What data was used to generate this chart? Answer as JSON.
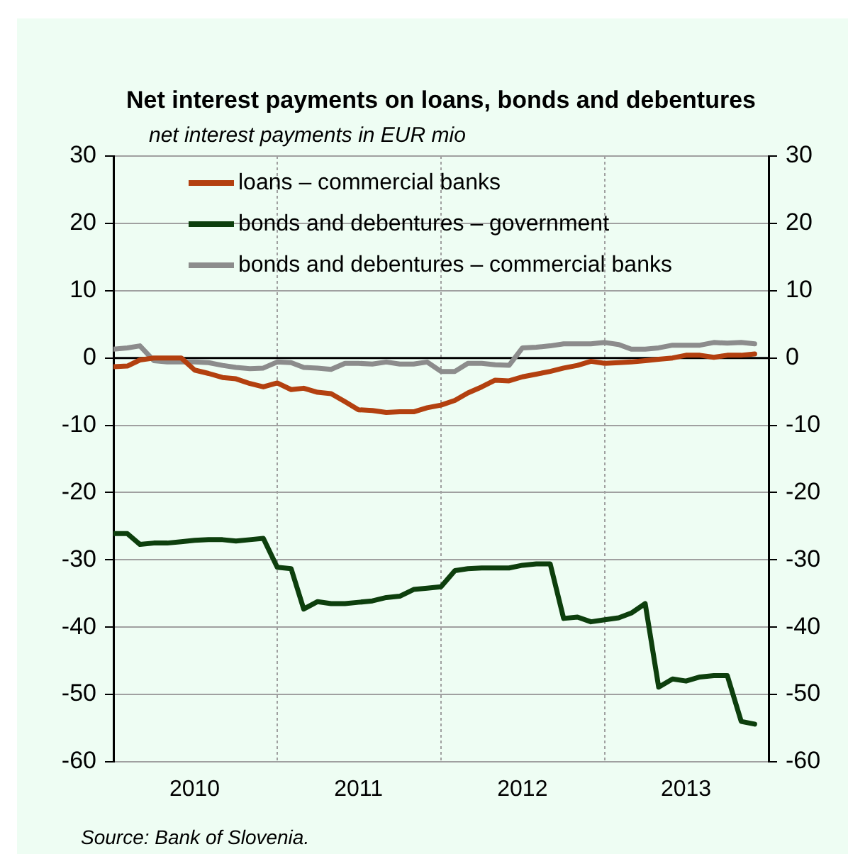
{
  "chart_data": {
    "type": "line",
    "title": "Net interest payments on loans, bonds and debentures",
    "ylabel": "net interest payments in EUR mio",
    "x": [
      "2010-01",
      "2010-02",
      "2010-03",
      "2010-04",
      "2010-05",
      "2010-06",
      "2010-07",
      "2010-08",
      "2010-09",
      "2010-10",
      "2010-11",
      "2010-12",
      "2011-01",
      "2011-02",
      "2011-03",
      "2011-04",
      "2011-05",
      "2011-06",
      "2011-07",
      "2011-08",
      "2011-09",
      "2011-10",
      "2011-11",
      "2011-12",
      "2012-01",
      "2012-02",
      "2012-03",
      "2012-04",
      "2012-05",
      "2012-06",
      "2012-07",
      "2012-08",
      "2012-09",
      "2012-10",
      "2012-11",
      "2012-12",
      "2013-01",
      "2013-02",
      "2013-03",
      "2013-04",
      "2013-05",
      "2013-06",
      "2013-07",
      "2013-08",
      "2013-09",
      "2013-10",
      "2013-11",
      "2013-12"
    ],
    "series": [
      {
        "name": "loans – commercial banks",
        "color": "#b3400f",
        "values": [
          -1.3,
          -1.2,
          -0.3,
          0,
          0,
          0,
          -1.8,
          -2.3,
          -2.9,
          -3.1,
          -3.8,
          -4.3,
          -3.7,
          -4.7,
          -4.5,
          -5.1,
          -5.3,
          -6.5,
          -7.7,
          -7.8,
          -8.1,
          -8.0,
          -8.0,
          -7.4,
          -7.0,
          -6.3,
          -5.2,
          -4.3,
          -3.3,
          -3.4,
          -2.8,
          -2.4,
          -2.0,
          -1.5,
          -1.1,
          -0.5,
          -0.8,
          -0.7,
          -0.6,
          -0.4,
          -0.2,
          0,
          0.4,
          0.4,
          0.1,
          0.4,
          0.4,
          0.6
        ]
      },
      {
        "name": "bonds and debentures – government",
        "color": "#0d3f0d",
        "values": [
          -26.1,
          -26.1,
          -27.7,
          -27.5,
          -27.5,
          -27.3,
          -27.1,
          -27.0,
          -27.0,
          -27.2,
          -27.0,
          -26.8,
          -31.1,
          -31.3,
          -37.3,
          -36.2,
          -36.5,
          -36.5,
          -36.3,
          -36.1,
          -35.6,
          -35.4,
          -34.4,
          -34.2,
          -34.0,
          -31.6,
          -31.3,
          -31.2,
          -31.2,
          -31.2,
          -30.8,
          -30.6,
          -30.6,
          -38.7,
          -38.5,
          -39.2,
          -38.9,
          -38.6,
          -37.9,
          -36.5,
          -48.9,
          -47.7,
          -48.0,
          -47.4,
          -47.2,
          -47.2,
          -54.0,
          -54.4
        ]
      },
      {
        "name": "bonds and debentures – commercial banks",
        "color": "#8c8c8c",
        "values": [
          1.3,
          1.5,
          1.8,
          -0.4,
          -0.6,
          -0.6,
          -0.6,
          -0.7,
          -1.1,
          -1.4,
          -1.6,
          -1.5,
          -0.6,
          -0.7,
          -1.4,
          -1.5,
          -1.7,
          -0.8,
          -0.8,
          -0.9,
          -0.6,
          -0.9,
          -0.9,
          -0.6,
          -2.0,
          -2.0,
          -0.8,
          -0.8,
          -1.0,
          -1.1,
          1.5,
          1.6,
          1.8,
          2.1,
          2.1,
          2.1,
          2.3,
          2.0,
          1.3,
          1.3,
          1.5,
          1.9,
          1.9,
          1.9,
          2.3,
          2.2,
          2.3,
          2.1
        ]
      }
    ],
    "xlim": [
      "2010-01-01",
      "2014-01-01"
    ],
    "xticks": [
      {
        "value": "2010-01-01",
        "label": null
      },
      {
        "value": "2010-07-01",
        "label": "2010"
      },
      {
        "value": "2011-01-01",
        "label": null
      },
      {
        "value": "2011-07-01",
        "label": "2011"
      },
      {
        "value": "2012-01-01",
        "label": null
      },
      {
        "value": "2012-07-01",
        "label": "2012"
      },
      {
        "value": "2013-01-01",
        "label": null
      },
      {
        "value": "2013-07-01",
        "label": "2013"
      },
      {
        "value": "2014-01-01",
        "label": null
      }
    ],
    "ylim": [
      -60,
      30
    ],
    "yticks": [
      -60,
      -50,
      -40,
      -30,
      -20,
      -10,
      0,
      10,
      20,
      30
    ],
    "y2lim": [
      -60,
      30
    ],
    "y2ticks": [
      -60,
      -50,
      -40,
      -30,
      -20,
      -10,
      0,
      10,
      20,
      30
    ],
    "ref_lines": [
      {
        "axis": "y",
        "value": 0,
        "color": "#000000"
      }
    ],
    "grid": true,
    "legend": "top left",
    "line_style": "solid",
    "marker": "none",
    "annotations": [
      "Source: Bank of Slovenia."
    ]
  }
}
